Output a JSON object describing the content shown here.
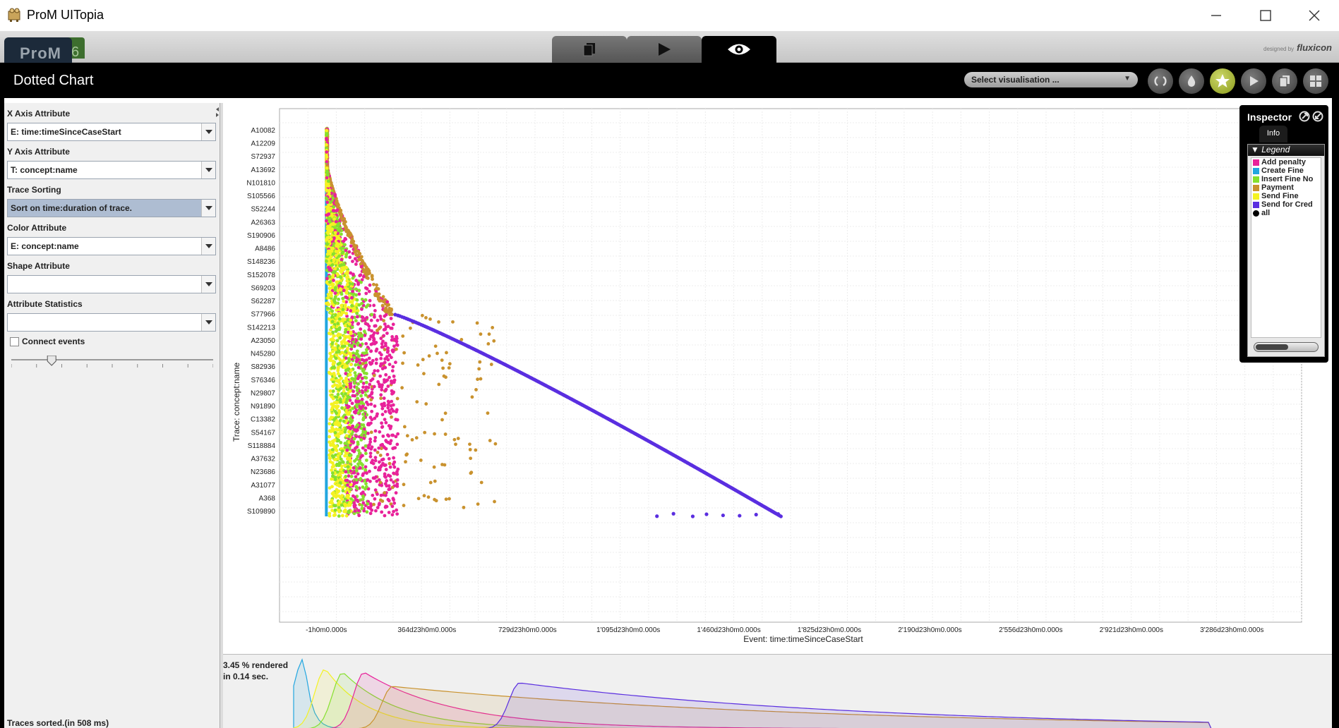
{
  "window": {
    "title": "ProM UITopia"
  },
  "brand": {
    "logo_text": "ProM",
    "logo_version": "6",
    "designed_by": "designed by",
    "company": "fluxicon"
  },
  "view": {
    "title": "Dotted Chart",
    "vis_select_label": "Select visualisation ..."
  },
  "tabs": [
    {
      "name": "workspace-tab",
      "icon": "documents-icon"
    },
    {
      "name": "actions-tab",
      "icon": "play-icon"
    },
    {
      "name": "views-tab",
      "icon": "eye-icon",
      "active": true
    }
  ],
  "toolbar_icons": [
    "refresh-icon",
    "drop-icon",
    "favorite-star-icon",
    "play-icon",
    "copy-icon",
    "grid-icon"
  ],
  "left_panel": {
    "x_axis_label": "X Axis Attribute",
    "x_axis_value": "E: time:timeSinceCaseStart",
    "y_axis_label": "Y Axis Attribute",
    "y_axis_value": "T: concept:name",
    "sorting_label": "Trace Sorting",
    "sorting_value": "Sort on time:duration of trace.",
    "color_label": "Color Attribute",
    "color_value": "E: concept:name",
    "shape_label": "Shape Attribute",
    "shape_value": "",
    "stats_label": "Attribute Statistics",
    "stats_value": "",
    "connect_label": "Connect events",
    "connect_checked": false,
    "slider_value_fraction": 0.2,
    "status": "Traces sorted.(in 508 ms)"
  },
  "inspector": {
    "title": "Inspector",
    "tab": "Info",
    "legend_title": "Legend",
    "legend": [
      {
        "label": "Add penalty",
        "color": "#e8229a"
      },
      {
        "label": "Create Fine",
        "color": "#22a6e0"
      },
      {
        "label": "Insert Fine No",
        "color": "#86e02e"
      },
      {
        "label": "Payment",
        "color": "#c9922e"
      },
      {
        "label": "Send Fine",
        "color": "#f4f222"
      },
      {
        "label": "Send for Cred",
        "color": "#5a2ee0"
      },
      {
        "label": "all",
        "color": "#000000"
      }
    ]
  },
  "overview": {
    "rendered": "3.45 % rendered",
    "time": "in 0.14 sec."
  },
  "chart_data": {
    "type": "scatter",
    "xlabel": "Event: time:timeSinceCaseStart",
    "ylabel": "Trace: concept:name",
    "x_ticks": [
      "-1h0m0.000s",
      "364d23h0m0.000s",
      "729d23h0m0.000s",
      "1'095d23h0m0.000s",
      "1'460d23h0m0.000s",
      "1'825d23h0m0.000s",
      "2'190d23h0m0.000s",
      "2'556d23h0m0.000s",
      "2'921d23h0m0.000s",
      "3'286d23h0m0.000s"
    ],
    "x_tick_days": [
      0,
      365,
      730,
      1096,
      1461,
      1826,
      2191,
      2557,
      2922,
      3287
    ],
    "y_ticks": [
      "A10082",
      "A12209",
      "S72937",
      "A13692",
      "N101810",
      "S105566",
      "S52244",
      "A26363",
      "S190906",
      "A8486",
      "S148236",
      "S152078",
      "S69203",
      "S62287",
      "S77966",
      "S142213",
      "A23050",
      "N45280",
      "S82936",
      "S76346",
      "N29807",
      "N91890",
      "C13382",
      "S54167",
      "S118884",
      "A37632",
      "N23686",
      "A31077",
      "A368",
      "S109890"
    ],
    "x_range_days": [
      -170,
      3540
    ],
    "grid": true,
    "series": [
      {
        "name": "Create Fine",
        "color": "#22a6e0",
        "days_range": [
          0,
          0
        ]
      },
      {
        "name": "Send Fine",
        "color": "#f4f222",
        "days_range": [
          20,
          120
        ]
      },
      {
        "name": "Insert Fine No",
        "color": "#86e02e",
        "days_range": [
          30,
          160
        ]
      },
      {
        "name": "Add penalty",
        "color": "#e8229a",
        "days_range": [
          60,
          260
        ]
      },
      {
        "name": "Payment",
        "color": "#c9922e",
        "days_range": [
          0,
          600
        ]
      },
      {
        "name": "Send for Cred",
        "color": "#5a2ee0",
        "days_range": [
          380,
          1680
        ]
      }
    ]
  }
}
